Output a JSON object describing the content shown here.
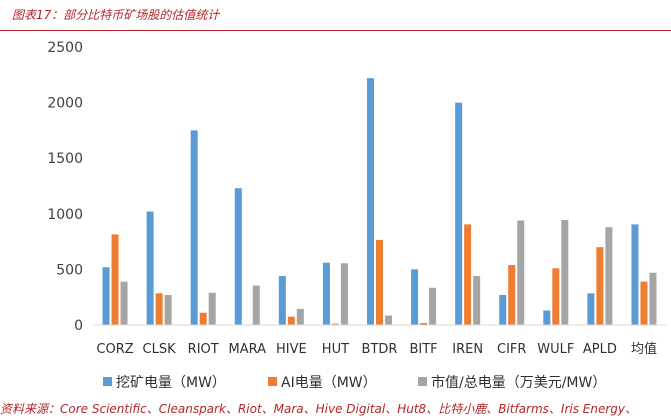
{
  "figure": {
    "title": "图表17：部分比特币矿场股的估值统计",
    "source": "资料来源：Core Scientific、Cleanspark、Riot、Mara、Hive Digital、Hut8、比特小鹿、Bitfarms、Iris Energy、"
  },
  "colors": {
    "series": [
      "#5b9bd5",
      "#ed7d31",
      "#a5a5a5"
    ],
    "accent": "#b3262b",
    "axis": "#d9d9d9"
  },
  "chart_data": {
    "type": "bar",
    "categories": [
      "CORZ",
      "CLSK",
      "RIOT",
      "MARA",
      "HIVE",
      "HUT",
      "BTDR",
      "BITF",
      "IREN",
      "CIFR",
      "WULF",
      "APLD",
      "均值"
    ],
    "series": [
      {
        "name": "挖矿电量（MW）",
        "values": [
          520,
          1020,
          1750,
          1230,
          440,
          560,
          2220,
          500,
          2000,
          270,
          130,
          285,
          905
        ]
      },
      {
        "name": "AI电量（MW）",
        "values": [
          815,
          285,
          110,
          0,
          75,
          12,
          765,
          18,
          905,
          540,
          510,
          700,
          390
        ]
      },
      {
        "name": "市值/总电量（万美元/MW）",
        "values": [
          390,
          270,
          290,
          355,
          145,
          555,
          85,
          335,
          440,
          940,
          945,
          880,
          470
        ]
      }
    ],
    "ylim": [
      0,
      2500
    ],
    "yticks": [
      0,
      500,
      1000,
      1500,
      2000,
      2500
    ],
    "grid": false,
    "legend_position": "bottom",
    "title": "",
    "xlabel": "",
    "ylabel": ""
  }
}
